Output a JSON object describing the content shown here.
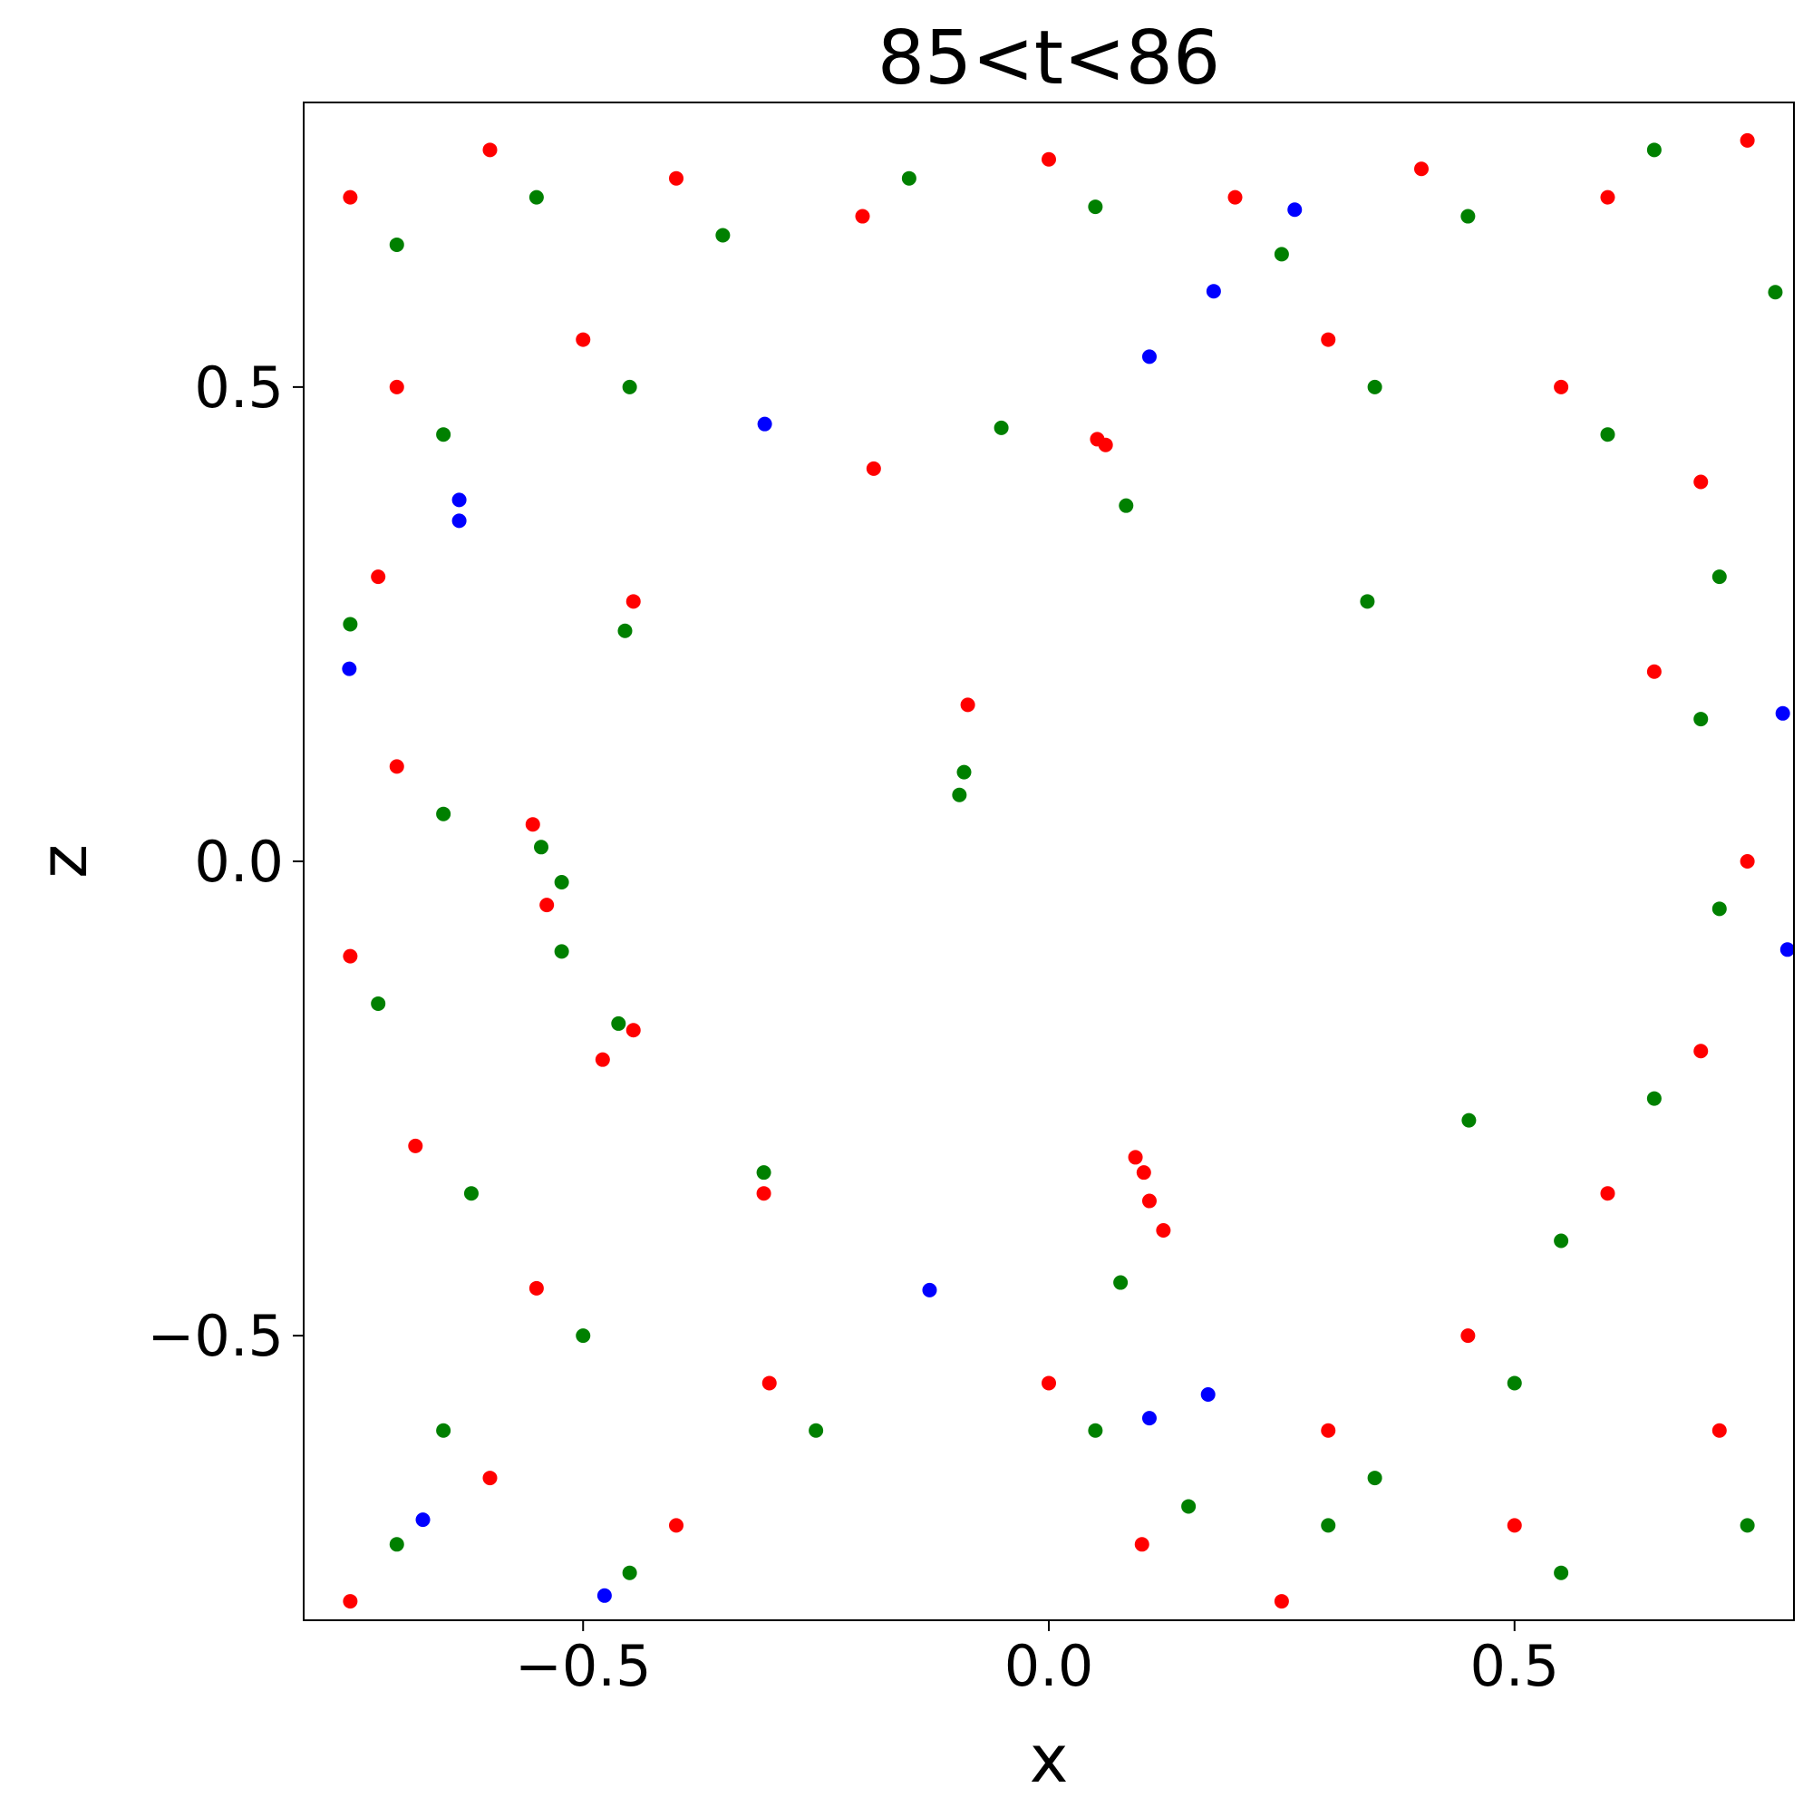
{
  "chart_data": {
    "type": "scatter",
    "title": "85<t<86",
    "x_label": "x",
    "y_label": "z",
    "xlim": [
      -0.8,
      0.8
    ],
    "ylim": [
      -0.8,
      0.8
    ],
    "xticks": [
      {
        "value": -0.5,
        "label": "−0.5"
      },
      {
        "value": 0,
        "label": "0.0"
      },
      {
        "value": 0.5,
        "label": "0.5"
      }
    ],
    "yticks": [
      {
        "value": -0.5,
        "label": "−0.5"
      },
      {
        "value": 0,
        "label": "0.0"
      },
      {
        "value": 0.5,
        "label": "0.5"
      }
    ],
    "grid": false,
    "series": [
      {
        "color": "#ff0000",
        "x": [
          -0.087,
          0.052,
          0.061,
          -0.188,
          -0.446,
          -0.554,
          -0.539,
          -0.446,
          -0.479,
          -0.306,
          0.093,
          0.102,
          0.108,
          0.123,
          -0.75,
          -0.6,
          -0.4,
          -0.2,
          0.0,
          0.2,
          0.4,
          0.6,
          0.75,
          -0.7,
          -0.5,
          0.3,
          0.55,
          0.7,
          -0.72,
          0.65,
          -0.7,
          0.75,
          -0.75,
          0.7,
          -0.68,
          0.6,
          -0.55,
          0.45,
          -0.3,
          0.0,
          0.3,
          -0.6,
          -0.4,
          0.1,
          0.5,
          0.72,
          -0.75,
          0.25
        ],
        "y": [
          0.165,
          0.445,
          0.439,
          0.414,
          0.274,
          0.039,
          -0.046,
          -0.178,
          -0.209,
          -0.35,
          -0.312,
          -0.328,
          -0.358,
          -0.389,
          0.7,
          0.75,
          0.72,
          0.68,
          0.74,
          0.7,
          0.73,
          0.7,
          0.76,
          0.5,
          0.55,
          0.55,
          0.5,
          0.4,
          0.3,
          0.2,
          0.1,
          0.0,
          -0.1,
          -0.2,
          -0.3,
          -0.35,
          -0.45,
          -0.5,
          -0.55,
          -0.55,
          -0.6,
          -0.65,
          -0.7,
          -0.72,
          -0.7,
          -0.6,
          -0.78,
          -0.78
        ]
      },
      {
        "color": "#008000",
        "x": [
          -0.091,
          -0.096,
          0.083,
          -0.051,
          0.342,
          -0.455,
          -0.523,
          -0.523,
          -0.545,
          -0.462,
          -0.306,
          0.077,
          0.451,
          -0.7,
          -0.55,
          -0.35,
          -0.15,
          0.05,
          0.25,
          0.45,
          0.65,
          0.78,
          -0.65,
          -0.45,
          0.35,
          0.6,
          0.72,
          -0.75,
          0.7,
          -0.65,
          0.72,
          -0.72,
          0.65,
          -0.62,
          0.55,
          -0.5,
          0.5,
          -0.25,
          0.05,
          0.35,
          -0.65,
          -0.45,
          0.15,
          0.55,
          0.75,
          -0.7,
          0.3
        ],
        "y": [
          0.094,
          0.07,
          0.375,
          0.457,
          0.274,
          0.243,
          -0.022,
          -0.095,
          0.015,
          -0.171,
          -0.328,
          -0.444,
          -0.273,
          0.65,
          0.7,
          0.66,
          0.72,
          0.69,
          0.64,
          0.68,
          0.75,
          0.6,
          0.45,
          0.5,
          0.5,
          0.45,
          0.3,
          0.25,
          0.15,
          0.05,
          -0.05,
          -0.15,
          -0.25,
          -0.35,
          -0.4,
          -0.5,
          -0.55,
          -0.6,
          -0.6,
          -0.65,
          -0.6,
          -0.75,
          -0.68,
          -0.75,
          -0.7,
          -0.72,
          -0.7
        ]
      },
      {
        "color": "#0000ff",
        "x": [
          0.264,
          0.177,
          0.108,
          -0.305,
          -0.633,
          -0.633,
          -0.751,
          0.788,
          0.793,
          -0.128,
          0.171,
          0.108,
          -0.672,
          -0.477
        ],
        "y": [
          0.687,
          0.601,
          0.532,
          0.461,
          0.381,
          0.359,
          0.203,
          0.156,
          -0.093,
          -0.452,
          -0.562,
          -0.587,
          -0.694,
          -0.774
        ]
      }
    ]
  }
}
